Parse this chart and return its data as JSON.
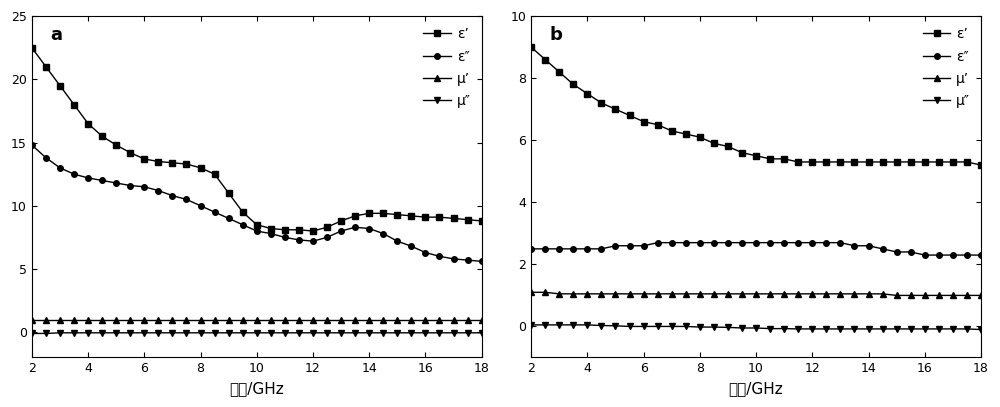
{
  "freq": [
    2,
    2.5,
    3,
    3.5,
    4,
    4.5,
    5,
    5.5,
    6,
    6.5,
    7,
    7.5,
    8,
    8.5,
    9,
    9.5,
    10,
    10.5,
    11,
    11.5,
    12,
    12.5,
    13,
    13.5,
    14,
    14.5,
    15,
    15.5,
    16,
    16.5,
    17,
    17.5,
    18
  ],
  "a_ep": [
    22.5,
    21.0,
    19.5,
    18.0,
    16.5,
    15.5,
    14.8,
    14.2,
    13.7,
    13.5,
    13.4,
    13.3,
    13.0,
    12.5,
    11.0,
    9.5,
    8.5,
    8.2,
    8.1,
    8.1,
    8.0,
    8.3,
    8.8,
    9.2,
    9.4,
    9.4,
    9.3,
    9.2,
    9.1,
    9.1,
    9.0,
    8.9,
    8.8
  ],
  "a_epp": [
    14.8,
    13.8,
    13.0,
    12.5,
    12.2,
    12.0,
    11.8,
    11.6,
    11.5,
    11.2,
    10.8,
    10.5,
    10.0,
    9.5,
    9.0,
    8.5,
    8.0,
    7.8,
    7.5,
    7.3,
    7.2,
    7.5,
    8.0,
    8.3,
    8.2,
    7.8,
    7.2,
    6.8,
    6.3,
    6.0,
    5.8,
    5.7,
    5.6
  ],
  "a_mup": [
    1.0,
    1.0,
    1.0,
    1.0,
    1.0,
    1.0,
    1.0,
    1.0,
    1.0,
    1.0,
    1.0,
    1.0,
    1.0,
    1.0,
    1.0,
    1.0,
    1.0,
    1.0,
    1.0,
    1.0,
    1.0,
    1.0,
    1.0,
    1.0,
    1.0,
    1.0,
    1.0,
    1.0,
    1.0,
    1.0,
    1.0,
    1.0,
    1.0
  ],
  "a_mupp": [
    -0.1,
    -0.1,
    -0.05,
    -0.05,
    -0.05,
    -0.05,
    -0.05,
    -0.05,
    -0.05,
    -0.05,
    -0.05,
    -0.05,
    -0.05,
    -0.05,
    -0.05,
    -0.05,
    -0.05,
    -0.05,
    -0.05,
    -0.05,
    -0.05,
    -0.05,
    -0.05,
    -0.05,
    -0.05,
    -0.05,
    -0.05,
    -0.05,
    -0.05,
    -0.05,
    -0.05,
    -0.05,
    -0.05
  ],
  "b_ep": [
    9.0,
    8.6,
    8.2,
    7.8,
    7.5,
    7.2,
    7.0,
    6.8,
    6.6,
    6.5,
    6.3,
    6.2,
    6.1,
    5.9,
    5.8,
    5.6,
    5.5,
    5.4,
    5.4,
    5.3,
    5.3,
    5.3,
    5.3,
    5.3,
    5.3,
    5.3,
    5.3,
    5.3,
    5.3,
    5.3,
    5.3,
    5.3,
    5.2
  ],
  "b_epp": [
    2.5,
    2.5,
    2.5,
    2.5,
    2.5,
    2.5,
    2.6,
    2.6,
    2.6,
    2.7,
    2.7,
    2.7,
    2.7,
    2.7,
    2.7,
    2.7,
    2.7,
    2.7,
    2.7,
    2.7,
    2.7,
    2.7,
    2.7,
    2.6,
    2.6,
    2.5,
    2.4,
    2.4,
    2.3,
    2.3,
    2.3,
    2.3,
    2.3
  ],
  "b_mup": [
    1.1,
    1.1,
    1.05,
    1.05,
    1.05,
    1.05,
    1.05,
    1.05,
    1.05,
    1.05,
    1.05,
    1.05,
    1.05,
    1.05,
    1.05,
    1.05,
    1.05,
    1.05,
    1.05,
    1.05,
    1.05,
    1.05,
    1.05,
    1.05,
    1.05,
    1.05,
    1.0,
    1.0,
    1.0,
    1.0,
    1.0,
    1.0,
    1.0
  ],
  "b_mupp": [
    0.05,
    0.05,
    0.05,
    0.05,
    0.05,
    0.03,
    0.02,
    0.0,
    0.0,
    0.0,
    0.0,
    0.0,
    -0.02,
    -0.02,
    -0.03,
    -0.05,
    -0.05,
    -0.07,
    -0.07,
    -0.08,
    -0.08,
    -0.08,
    -0.08,
    -0.08,
    -0.08,
    -0.08,
    -0.08,
    -0.08,
    -0.08,
    -0.08,
    -0.08,
    -0.08,
    -0.1
  ],
  "a_ylim": [
    -2,
    25
  ],
  "b_ylim": [
    -1,
    10
  ],
  "a_yticks": [
    0,
    5,
    10,
    15,
    20,
    25
  ],
  "b_yticks": [
    0,
    2,
    4,
    6,
    8,
    10
  ],
  "xlim": [
    2,
    18
  ],
  "xticks": [
    2,
    4,
    6,
    8,
    10,
    12,
    14,
    16,
    18
  ],
  "xlabel": "频率/GHz",
  "legend_ep": "ε’",
  "legend_epp": "ε″",
  "legend_mup": "μ’",
  "legend_mupp": "μ″",
  "label_a": "a",
  "label_b": "b",
  "line_color": "#000000",
  "marker_square": "s",
  "marker_circle": "o",
  "marker_tri_up": "^",
  "marker_tri_down": "v",
  "marker_size": 4,
  "line_width": 1.0,
  "font_size_label": 11,
  "font_size_legend": 10,
  "font_size_tick": 9,
  "font_size_panel_label": 13
}
